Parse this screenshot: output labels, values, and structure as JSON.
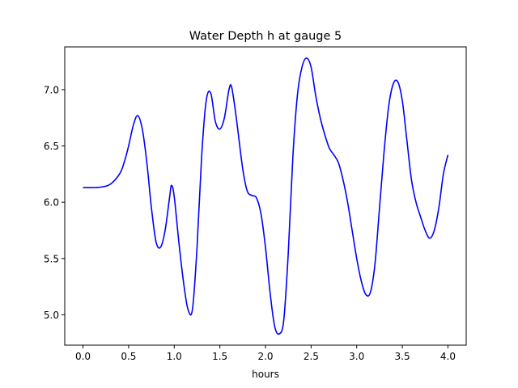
{
  "chart_data": {
    "type": "line",
    "title": "Water Depth h at gauge 5",
    "xlabel": "hours",
    "ylabel": "",
    "xlim": [
      -0.2,
      4.2
    ],
    "ylim": [
      4.73,
      7.38
    ],
    "grid": false,
    "xticks": [
      0.0,
      0.5,
      1.0,
      1.5,
      2.0,
      2.5,
      3.0,
      3.5,
      4.0
    ],
    "xtick_labels": [
      "0.0",
      "0.5",
      "1.0",
      "1.5",
      "2.0",
      "2.5",
      "3.0",
      "3.5",
      "4.0"
    ],
    "yticks": [
      5.0,
      5.5,
      6.0,
      6.5,
      7.0
    ],
    "ytick_labels": [
      "5.0",
      "5.5",
      "6.0",
      "6.5",
      "7.0"
    ],
    "series": [
      {
        "color": "#0000ff",
        "points": [
          [
            0.0,
            6.13
          ],
          [
            0.1,
            6.13
          ],
          [
            0.2,
            6.135
          ],
          [
            0.3,
            6.16
          ],
          [
            0.4,
            6.25
          ],
          [
            0.45,
            6.35
          ],
          [
            0.5,
            6.5
          ],
          [
            0.55,
            6.68
          ],
          [
            0.6,
            6.77
          ],
          [
            0.65,
            6.65
          ],
          [
            0.7,
            6.35
          ],
          [
            0.75,
            5.95
          ],
          [
            0.8,
            5.65
          ],
          [
            0.85,
            5.6
          ],
          [
            0.9,
            5.75
          ],
          [
            0.95,
            6.05
          ],
          [
            0.97,
            6.15
          ],
          [
            1.0,
            6.05
          ],
          [
            1.05,
            5.65
          ],
          [
            1.1,
            5.3
          ],
          [
            1.15,
            5.05
          ],
          [
            1.2,
            5.05
          ],
          [
            1.25,
            5.6
          ],
          [
            1.3,
            6.4
          ],
          [
            1.35,
            6.9
          ],
          [
            1.4,
            6.97
          ],
          [
            1.45,
            6.72
          ],
          [
            1.5,
            6.65
          ],
          [
            1.55,
            6.75
          ],
          [
            1.6,
            7.0
          ],
          [
            1.63,
            7.02
          ],
          [
            1.68,
            6.75
          ],
          [
            1.75,
            6.3
          ],
          [
            1.8,
            6.1
          ],
          [
            1.85,
            6.06
          ],
          [
            1.9,
            6.04
          ],
          [
            1.95,
            5.9
          ],
          [
            2.0,
            5.6
          ],
          [
            2.05,
            5.2
          ],
          [
            2.1,
            4.9
          ],
          [
            2.15,
            4.83
          ],
          [
            2.2,
            4.95
          ],
          [
            2.25,
            5.55
          ],
          [
            2.3,
            6.4
          ],
          [
            2.35,
            6.95
          ],
          [
            2.4,
            7.2
          ],
          [
            2.45,
            7.28
          ],
          [
            2.5,
            7.2
          ],
          [
            2.55,
            6.95
          ],
          [
            2.6,
            6.75
          ],
          [
            2.65,
            6.6
          ],
          [
            2.7,
            6.48
          ],
          [
            2.75,
            6.42
          ],
          [
            2.8,
            6.35
          ],
          [
            2.85,
            6.2
          ],
          [
            2.9,
            6.0
          ],
          [
            2.95,
            5.75
          ],
          [
            3.0,
            5.5
          ],
          [
            3.05,
            5.3
          ],
          [
            3.1,
            5.18
          ],
          [
            3.15,
            5.2
          ],
          [
            3.2,
            5.45
          ],
          [
            3.25,
            5.95
          ],
          [
            3.3,
            6.45
          ],
          [
            3.35,
            6.85
          ],
          [
            3.4,
            7.05
          ],
          [
            3.45,
            7.07
          ],
          [
            3.5,
            6.9
          ],
          [
            3.55,
            6.55
          ],
          [
            3.6,
            6.2
          ],
          [
            3.65,
            6.0
          ],
          [
            3.7,
            5.87
          ],
          [
            3.75,
            5.75
          ],
          [
            3.8,
            5.68
          ],
          [
            3.85,
            5.75
          ],
          [
            3.9,
            5.95
          ],
          [
            3.95,
            6.25
          ],
          [
            4.0,
            6.42
          ]
        ]
      }
    ]
  }
}
